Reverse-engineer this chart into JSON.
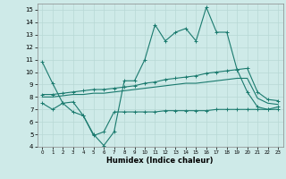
{
  "xlabel": "Humidex (Indice chaleur)",
  "ylabel": "",
  "xlim": [
    -0.5,
    23.5
  ],
  "ylim": [
    4,
    15.5
  ],
  "xticks": [
    0,
    1,
    2,
    3,
    4,
    5,
    6,
    7,
    8,
    9,
    10,
    11,
    12,
    13,
    14,
    15,
    16,
    17,
    18,
    19,
    20,
    21,
    22,
    23
  ],
  "yticks": [
    4,
    5,
    6,
    7,
    8,
    9,
    10,
    11,
    12,
    13,
    14,
    15
  ],
  "line_color": "#1a7a6e",
  "bg_color": "#ceeae8",
  "grid_color": "#b8d8d5",
  "line1_x": [
    0,
    1,
    2,
    3,
    4,
    5,
    6,
    7,
    8,
    9,
    10,
    11,
    12,
    13,
    14,
    15,
    16,
    17,
    18,
    19,
    20,
    21,
    22,
    23
  ],
  "line1_y": [
    10.8,
    9.1,
    7.5,
    7.6,
    6.5,
    5.0,
    4.1,
    5.2,
    9.3,
    9.3,
    11.0,
    13.8,
    12.5,
    13.2,
    13.5,
    12.5,
    15.2,
    13.2,
    13.2,
    10.2,
    8.4,
    7.2,
    7.0,
    7.2
  ],
  "line2_x": [
    0,
    1,
    2,
    3,
    4,
    5,
    6,
    7,
    8,
    9,
    10,
    11,
    12,
    13,
    14,
    15,
    16,
    17,
    18,
    19,
    20,
    21,
    22,
    23
  ],
  "line2_y": [
    8.2,
    8.2,
    8.3,
    8.4,
    8.5,
    8.6,
    8.6,
    8.7,
    8.8,
    8.9,
    9.1,
    9.2,
    9.4,
    9.5,
    9.6,
    9.7,
    9.9,
    10.0,
    10.1,
    10.2,
    10.3,
    8.4,
    7.8,
    7.7
  ],
  "line3_x": [
    0,
    1,
    2,
    3,
    4,
    5,
    6,
    7,
    8,
    9,
    10,
    11,
    12,
    13,
    14,
    15,
    16,
    17,
    18,
    19,
    20,
    21,
    22,
    23
  ],
  "line3_y": [
    8.0,
    8.0,
    8.1,
    8.2,
    8.2,
    8.3,
    8.3,
    8.4,
    8.5,
    8.6,
    8.7,
    8.8,
    8.9,
    9.0,
    9.1,
    9.1,
    9.2,
    9.3,
    9.4,
    9.5,
    9.5,
    7.9,
    7.5,
    7.4
  ],
  "line4_x": [
    0,
    1,
    2,
    3,
    4,
    5,
    6,
    7,
    8,
    9,
    10,
    11,
    12,
    13,
    14,
    15,
    16,
    17,
    18,
    19,
    20,
    21,
    22,
    23
  ],
  "line4_y": [
    7.5,
    7.0,
    7.5,
    6.8,
    6.5,
    4.9,
    5.2,
    6.8,
    6.8,
    6.8,
    6.8,
    6.8,
    6.9,
    6.9,
    6.9,
    6.9,
    6.9,
    7.0,
    7.0,
    7.0,
    7.0,
    7.0,
    7.0,
    7.0
  ]
}
